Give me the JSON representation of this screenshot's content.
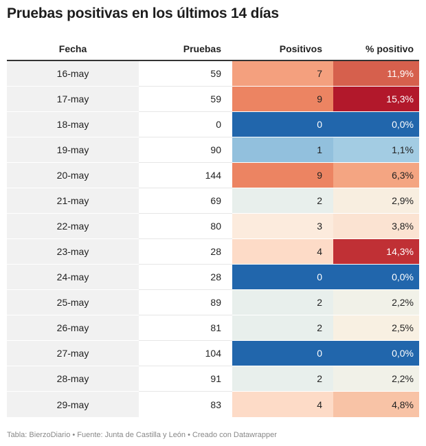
{
  "title": "Pruebas positivas en los últimos 14 días",
  "footer": "Tabla: BierzoDiario • Fuente: Junta de Castilla y León • Creado con Datawrapper",
  "chart_data": {
    "type": "table",
    "columns": [
      "Fecha",
      "Pruebas",
      "Positivos",
      "% positivo"
    ],
    "rows": [
      {
        "fecha": "16-may",
        "pruebas": "59",
        "positivos": "7",
        "pct": "11,9%",
        "pos_color": "#f4a07e",
        "pct_color": "#d6604d"
      },
      {
        "fecha": "17-may",
        "pruebas": "59",
        "positivos": "9",
        "pct": "15,3%",
        "pos_color": "#ec8462",
        "pct_color": "#b2182b"
      },
      {
        "fecha": "18-may",
        "pruebas": "0",
        "positivos": "0",
        "pct": "0,0%",
        "pos_color": "#2166ac",
        "pct_color": "#2166ac"
      },
      {
        "fecha": "19-may",
        "pruebas": "90",
        "positivos": "1",
        "pct": "1,1%",
        "pos_color": "#92c0dd",
        "pct_color": "#a3cce3"
      },
      {
        "fecha": "20-may",
        "pruebas": "144",
        "positivos": "9",
        "pct": "6,3%",
        "pos_color": "#ec8462",
        "pct_color": "#f4a582"
      },
      {
        "fecha": "21-may",
        "pruebas": "69",
        "positivos": "2",
        "pct": "2,9%",
        "pos_color": "#e8efec",
        "pct_color": "#f8eee0"
      },
      {
        "fecha": "22-may",
        "pruebas": "80",
        "positivos": "3",
        "pct": "3,8%",
        "pos_color": "#fcebdd",
        "pct_color": "#fbe3d2"
      },
      {
        "fecha": "23-may",
        "pruebas": "28",
        "positivos": "4",
        "pct": "14,3%",
        "pos_color": "#fddbc7",
        "pct_color": "#c03035"
      },
      {
        "fecha": "24-may",
        "pruebas": "28",
        "positivos": "0",
        "pct": "0,0%",
        "pos_color": "#2166ac",
        "pct_color": "#2166ac"
      },
      {
        "fecha": "25-may",
        "pruebas": "89",
        "positivos": "2",
        "pct": "2,2%",
        "pos_color": "#e8efec",
        "pct_color": "#f1f1e8"
      },
      {
        "fecha": "26-may",
        "pruebas": "81",
        "positivos": "2",
        "pct": "2,5%",
        "pos_color": "#e8efec",
        "pct_color": "#f8f0e2"
      },
      {
        "fecha": "27-may",
        "pruebas": "104",
        "positivos": "0",
        "pct": "0,0%",
        "pos_color": "#2166ac",
        "pct_color": "#2166ac"
      },
      {
        "fecha": "28-may",
        "pruebas": "91",
        "positivos": "2",
        "pct": "2,2%",
        "pos_color": "#e8efec",
        "pct_color": "#f1f1e8"
      },
      {
        "fecha": "29-may",
        "pruebas": "83",
        "positivos": "4",
        "pct": "4,8%",
        "pos_color": "#fddbc7",
        "pct_color": "#f8c3a6"
      }
    ]
  }
}
